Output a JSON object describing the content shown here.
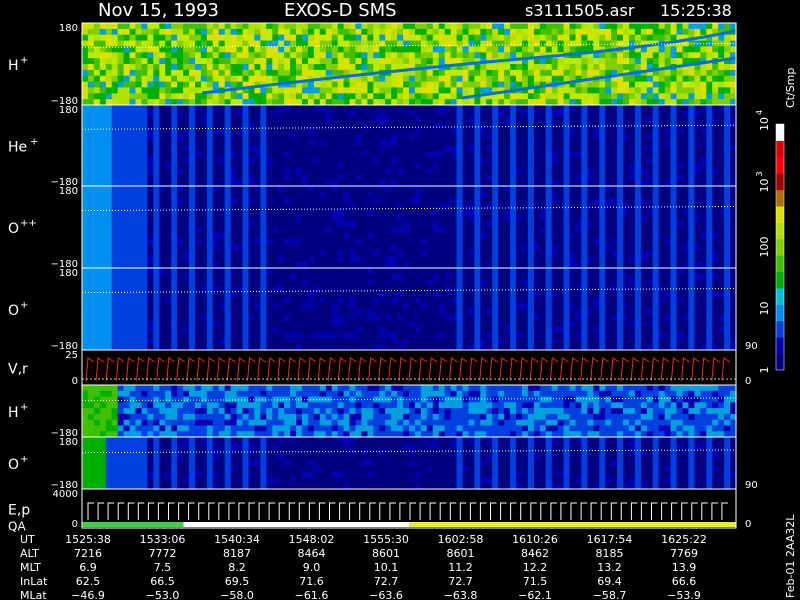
{
  "header": {
    "date": "Nov 15, 1993",
    "instrument": "EXOS-D SMS",
    "file": "s3111505.asr",
    "time": "15:25:38"
  },
  "colorbar": {
    "unit": "Ct/Smp",
    "ticks": [
      {
        "label": "1",
        "value": 1
      },
      {
        "label": "10",
        "value": 10
      },
      {
        "label": "100",
        "value": 100
      },
      {
        "label": "10",
        "sup": "3",
        "value": 1000
      },
      {
        "label": "10",
        "sup": "4",
        "value": 10000
      }
    ],
    "colors": [
      "#000080",
      "#0000b0",
      "#0040e0",
      "#0090f0",
      "#00c0e0",
      "#00b000",
      "#40c000",
      "#80d000",
      "#b0e000",
      "#e0e000",
      "#b07000",
      "#a00000",
      "#ff0000",
      "#e00000",
      "#ffffff"
    ]
  },
  "chart_data": {
    "type": "heatmap",
    "scale": "log",
    "panels": [
      {
        "species": "H",
        "charge": "+",
        "ymax": "180",
        "ymin": "−180",
        "kind": "spectrogram",
        "level": "high"
      },
      {
        "species": "He",
        "charge": "+",
        "ymax": "180",
        "ymin": "−180",
        "kind": "spectrogram",
        "level": "low"
      },
      {
        "species": "O",
        "charge": "++",
        "ymax": "180",
        "ymin": "−180",
        "kind": "spectrogram",
        "level": "low"
      },
      {
        "species": "O",
        "charge": "+",
        "ymax": "180",
        "ymin": "−180",
        "kind": "spectrogram",
        "level": "low",
        "right_label": "90"
      },
      {
        "species": "V,r",
        "charge": "",
        "ymax": "25",
        "ymin": "0",
        "kind": "line",
        "right_label": "0"
      },
      {
        "species": "H",
        "charge": "+",
        "ymax": "",
        "ymin": "−180",
        "kind": "spectrogram",
        "level": "mid"
      },
      {
        "species": "O",
        "charge": "+",
        "ymax": "180",
        "ymin": "−180",
        "kind": "spectrogram",
        "level": "low2",
        "right_label": "90"
      },
      {
        "species": "E,p",
        "species2": "QA",
        "charge": "",
        "ymax": "4000",
        "ymin": "0",
        "kind": "energy",
        "right_label": "0"
      }
    ],
    "ephemeris": {
      "rows": [
        "UT",
        "ALT",
        "MLT",
        "InLat",
        "MLat"
      ],
      "columns": [
        {
          "UT": "1525:38",
          "ALT": "7216",
          "MLT": "6.9",
          "InLat": "62.5",
          "MLat": "−46.9"
        },
        {
          "UT": "1533:06",
          "ALT": "7772",
          "MLT": "7.5",
          "InLat": "66.5",
          "MLat": "−53.0"
        },
        {
          "UT": "1540:34",
          "ALT": "8187",
          "MLT": "8.2",
          "InLat": "69.5",
          "MLat": "−58.0"
        },
        {
          "UT": "1548:02",
          "ALT": "8464",
          "MLT": "9.0",
          "InLat": "71.6",
          "MLat": "−61.6"
        },
        {
          "UT": "1555:30",
          "ALT": "8601",
          "MLT": "10.1",
          "InLat": "72.7",
          "MLat": "−63.6"
        },
        {
          "UT": "1602:58",
          "ALT": "8601",
          "MLT": "11.2",
          "InLat": "72.7",
          "MLat": "−63.8"
        },
        {
          "UT": "1610:26",
          "ALT": "8462",
          "MLT": "12.2",
          "InLat": "71.5",
          "MLat": "−62.1"
        },
        {
          "UT": "1617:54",
          "ALT": "8185",
          "MLT": "13.2",
          "InLat": "69.4",
          "MLat": "−58.7"
        },
        {
          "UT": "1625:22",
          "ALT": "7769",
          "MLT": "13.9",
          "InLat": "66.6",
          "MLat": "−53.9"
        }
      ]
    },
    "qa_bar": [
      {
        "from": 0,
        "to": 0.155,
        "color": "#40d040"
      },
      {
        "from": 0.155,
        "to": 0.5,
        "color": "#ffffff"
      },
      {
        "from": 0.5,
        "to": 1.0,
        "color": "#e8e840"
      }
    ]
  },
  "side_label": "Feb-01 2AA32L"
}
